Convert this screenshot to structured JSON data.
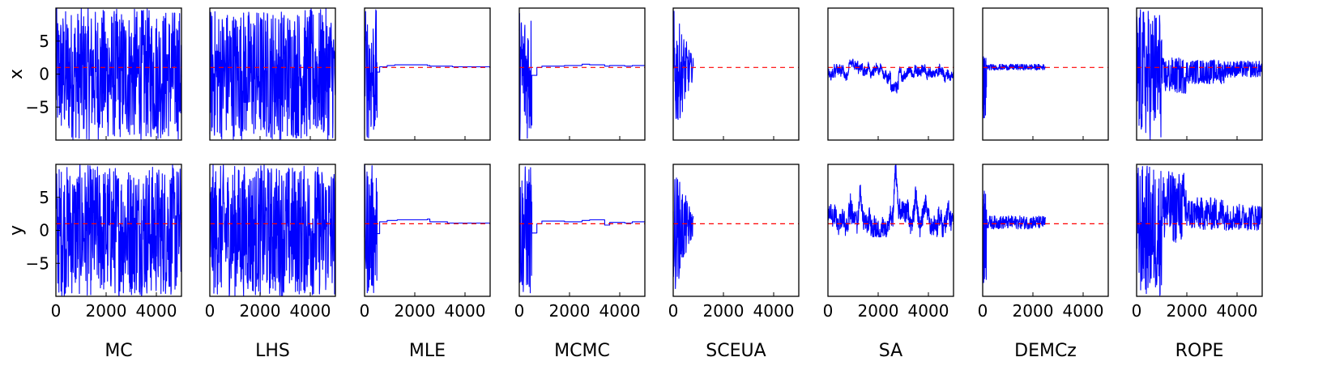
{
  "chart_data": {
    "type": "line",
    "rows": [
      {
        "name": "x",
        "label": "x",
        "ytick_labels": [
          "5",
          "0",
          "−5"
        ],
        "ytick_values": [
          5,
          0,
          -5
        ]
      },
      {
        "name": "y",
        "label": "y",
        "ytick_labels": [
          "5",
          "0",
          "−5"
        ],
        "ytick_values": [
          5,
          0,
          -5
        ]
      }
    ],
    "xlim": [
      0,
      5000
    ],
    "ylim": [
      -10,
      10
    ],
    "xtick_values": [
      0,
      2000,
      4000
    ],
    "xtick_labels": [
      "0",
      "2000",
      "4000"
    ],
    "reference_line": {
      "value": 1,
      "color": "#ff0000",
      "style": "dashed"
    },
    "trace_color": "#0000ff",
    "grid": false,
    "panels": [
      {
        "name": "MC",
        "label": "MC",
        "x": [
          {
            "kind": "noise",
            "start": 0,
            "end": 5000,
            "lo": -10,
            "hi": 10
          }
        ],
        "y": [
          {
            "kind": "noise",
            "start": 0,
            "end": 5000,
            "lo": -10,
            "hi": 10
          }
        ]
      },
      {
        "name": "LHS",
        "label": "LHS",
        "x": [
          {
            "kind": "noise",
            "start": 0,
            "end": 5000,
            "lo": -10,
            "hi": 10
          }
        ],
        "y": [
          {
            "kind": "noise",
            "start": 0,
            "end": 5000,
            "lo": -10,
            "hi": 10
          }
        ]
      },
      {
        "name": "MLE",
        "label": "MLE",
        "x": [
          {
            "kind": "noise",
            "start": 0,
            "end": 500,
            "lo": -10,
            "hi": 10
          },
          {
            "kind": "steps",
            "points": [
              [
                500,
                0.3
              ],
              [
                600,
                1.1
              ],
              [
                900,
                1.3
              ],
              [
                1200,
                1.4
              ],
              [
                2500,
                1.3
              ],
              [
                2600,
                1.2
              ],
              [
                3500,
                1.1
              ],
              [
                5000,
                1.1
              ]
            ]
          }
        ],
        "y": [
          {
            "kind": "noise",
            "start": 0,
            "end": 500,
            "lo": -10,
            "hi": 10
          },
          {
            "kind": "steps",
            "points": [
              [
                500,
                -0.5
              ],
              [
                600,
                1.3
              ],
              [
                900,
                1.5
              ],
              [
                1300,
                1.6
              ],
              [
                2500,
                1.7
              ],
              [
                2600,
                1.3
              ],
              [
                3300,
                1.1
              ],
              [
                5000,
                1.1
              ]
            ]
          }
        ]
      },
      {
        "name": "MCMC",
        "label": "MCMC",
        "x": [
          {
            "kind": "noise",
            "start": 0,
            "end": 500,
            "lo": -10,
            "hi": 10
          },
          {
            "kind": "steps",
            "points": [
              [
                500,
                -0.2
              ],
              [
                700,
                1.0
              ],
              [
                900,
                1.2
              ],
              [
                1800,
                1.3
              ],
              [
                2500,
                1.5
              ],
              [
                2800,
                1.4
              ],
              [
                3400,
                1.2
              ],
              [
                3600,
                1.3
              ],
              [
                4200,
                1.2
              ],
              [
                4500,
                1.3
              ],
              [
                5000,
                1.3
              ]
            ]
          }
        ],
        "y": [
          {
            "kind": "noise",
            "start": 0,
            "end": 500,
            "lo": -10,
            "hi": 10
          },
          {
            "kind": "steps",
            "points": [
              [
                500,
                -0.4
              ],
              [
                700,
                1.0
              ],
              [
                900,
                1.4
              ],
              [
                1800,
                1.3
              ],
              [
                2500,
                1.5
              ],
              [
                2800,
                1.6
              ],
              [
                3400,
                0.8
              ],
              [
                3600,
                1.2
              ],
              [
                4200,
                1.1
              ],
              [
                4500,
                1.3
              ],
              [
                5000,
                1.2
              ]
            ]
          }
        ]
      },
      {
        "name": "SCEUA",
        "label": "SCEUA",
        "x": [
          {
            "kind": "noise",
            "start": 0,
            "end": 800,
            "lo": -10,
            "hi": 10,
            "decay": true
          }
        ],
        "y": [
          {
            "kind": "noise",
            "start": 0,
            "end": 800,
            "lo": -10,
            "hi": 10,
            "decay": true
          }
        ]
      },
      {
        "name": "SA",
        "label": "SA",
        "x": [
          {
            "kind": "walk",
            "start": 0,
            "end": 5000,
            "lo": -3,
            "hi": 3,
            "center": 0,
            "scale": 1.2,
            "dip": [
              2500,
              2800,
              -2
            ]
          }
        ],
        "y": [
          {
            "kind": "walk",
            "start": 0,
            "end": 5000,
            "lo": -1,
            "hi": 10,
            "center": 1.5,
            "scale": 2.5,
            "peaks": [
              [
                900,
                4
              ],
              [
                1300,
                6
              ],
              [
                2700,
                10
              ],
              [
                3500,
                6
              ]
            ]
          }
        ]
      },
      {
        "name": "DEMCz",
        "label": "DEMCz",
        "x": [
          {
            "kind": "noise",
            "start": 0,
            "end": 150,
            "lo": -7,
            "hi": 3
          },
          {
            "kind": "noise",
            "start": 150,
            "end": 2500,
            "lo": 0.6,
            "hi": 1.5
          }
        ],
        "y": [
          {
            "kind": "noise",
            "start": 0,
            "end": 150,
            "lo": -8,
            "hi": 6
          },
          {
            "kind": "noise",
            "start": 150,
            "end": 2500,
            "lo": 0.2,
            "hi": 2.2
          }
        ]
      },
      {
        "name": "ROPE",
        "label": "ROPE",
        "x": [
          {
            "kind": "noise",
            "start": 0,
            "end": 1000,
            "lo": -10,
            "hi": 10
          },
          {
            "kind": "noise",
            "start": 1000,
            "end": 2000,
            "lo": -3,
            "hi": 2.5
          },
          {
            "kind": "noise",
            "start": 2000,
            "end": 3500,
            "lo": -1.5,
            "hi": 2.2
          },
          {
            "kind": "noise",
            "start": 3500,
            "end": 5000,
            "lo": -0.5,
            "hi": 2.0
          }
        ],
        "y": [
          {
            "kind": "noise",
            "start": 0,
            "end": 1000,
            "lo": -10,
            "hi": 10
          },
          {
            "kind": "noise",
            "start": 1000,
            "end": 2000,
            "lo": -2,
            "hi": 9
          },
          {
            "kind": "noise",
            "start": 2000,
            "end": 3500,
            "lo": 0,
            "hi": 5
          },
          {
            "kind": "noise",
            "start": 3500,
            "end": 5000,
            "lo": 0,
            "hi": 4
          }
        ]
      }
    ]
  }
}
